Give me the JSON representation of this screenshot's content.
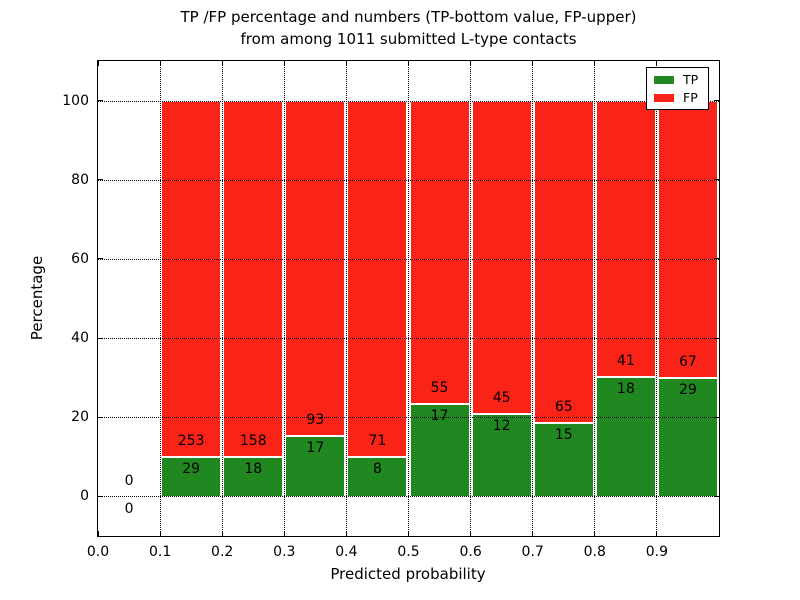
{
  "figure": {
    "title_line1": "TP /FP percentage and numbers (TP-bottom value, FP-upper)",
    "title_line2": "from among 1011 submitted L-type contacts",
    "xlabel": "Predicted probability",
    "ylabel": "Percentage"
  },
  "chart_data": {
    "type": "bar",
    "stacked": true,
    "normalized_to_percent": true,
    "title": "TP /FP percentage and numbers (TP-bottom value, FP-upper) from among 1011 submitted L-type contacts",
    "xlabel": "Predicted probability",
    "ylabel": "Percentage",
    "xlim": [
      0.0,
      1.0
    ],
    "ylim": [
      -10,
      110
    ],
    "grid": "dotted",
    "legend_position": "upper right",
    "x_tick_values": [
      0.0,
      0.1,
      0.2,
      0.3,
      0.4,
      0.5,
      0.6,
      0.7,
      0.8,
      0.9
    ],
    "x_tick_labels": [
      "0.0",
      "0.1",
      "0.2",
      "0.3",
      "0.4",
      "0.5",
      "0.6",
      "0.7",
      "0.8",
      "0.9"
    ],
    "y_tick_values": [
      0,
      20,
      40,
      60,
      80,
      100
    ],
    "y_tick_labels": [
      "0",
      "20",
      "40",
      "60",
      "80",
      "100"
    ],
    "series": [
      {
        "name": "TP",
        "color": "#218821"
      },
      {
        "name": "FP",
        "color": "#f92318"
      }
    ],
    "bins": [
      {
        "x0": 0.0,
        "x1": 0.1,
        "tp": 0,
        "fp": 0
      },
      {
        "x0": 0.1,
        "x1": 0.2,
        "tp": 29,
        "fp": 253
      },
      {
        "x0": 0.2,
        "x1": 0.3,
        "tp": 18,
        "fp": 158
      },
      {
        "x0": 0.3,
        "x1": 0.4,
        "tp": 17,
        "fp": 93
      },
      {
        "x0": 0.4,
        "x1": 0.5,
        "tp": 8,
        "fp": 71
      },
      {
        "x0": 0.5,
        "x1": 0.6,
        "tp": 17,
        "fp": 55
      },
      {
        "x0": 0.6,
        "x1": 0.7,
        "tp": 12,
        "fp": 45
      },
      {
        "x0": 0.7,
        "x1": 0.8,
        "tp": 15,
        "fp": 65
      },
      {
        "x0": 0.8,
        "x1": 0.9,
        "tp": 18,
        "fp": 41
      },
      {
        "x0": 0.9,
        "x1": 1.0,
        "tp": 29,
        "fp": 67
      }
    ],
    "total_contacts": 1011
  }
}
